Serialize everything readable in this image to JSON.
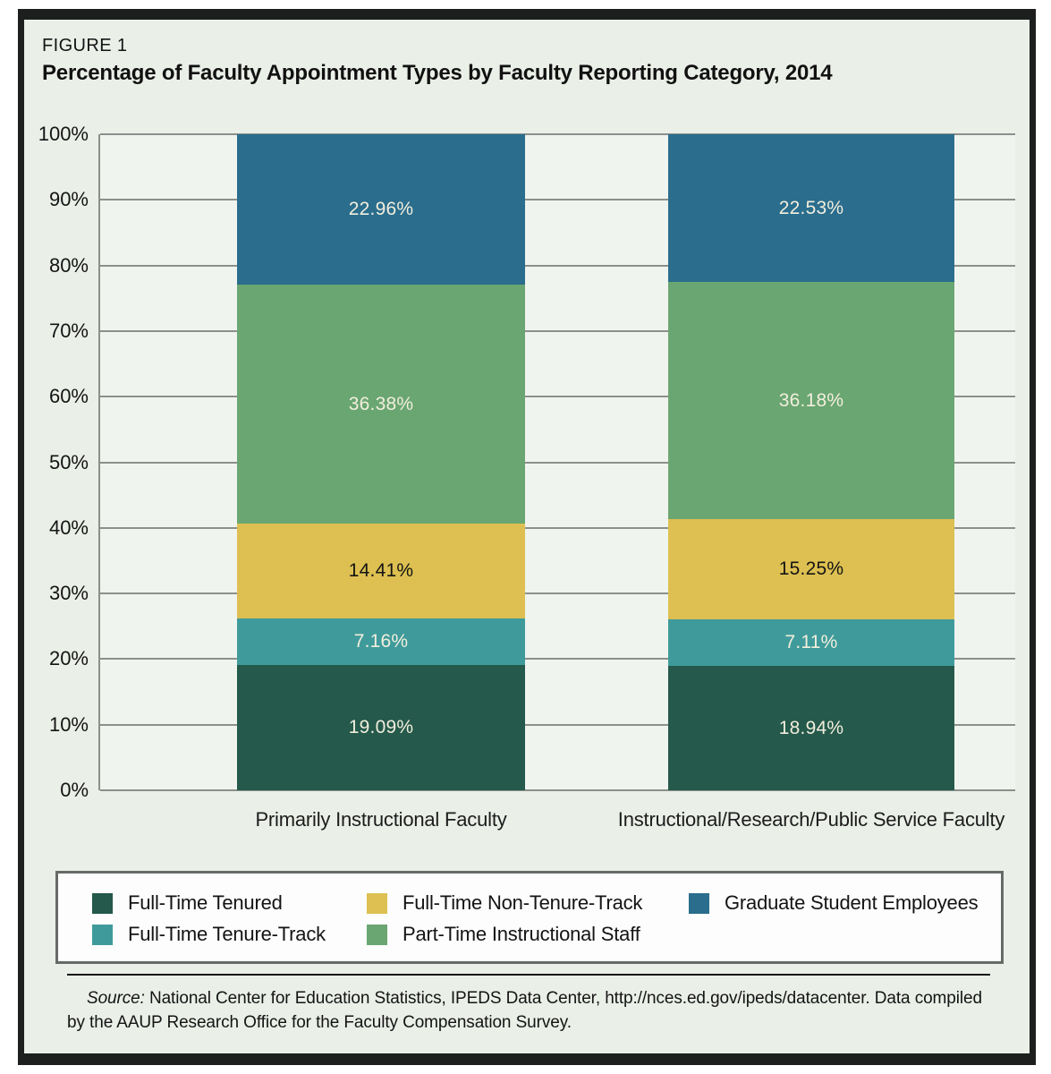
{
  "figure": {
    "label": "FIGURE 1",
    "title": "Percentage of Faculty Appointment Types by Faculty Reporting Category, 2014"
  },
  "chart_data": {
    "type": "bar",
    "stacked": true,
    "title": "Percentage of Faculty Appointment Types by Faculty Reporting Category, 2014",
    "categories": [
      "Primarily Instructional Faculty",
      "Instructional/Research/Public Service Faculty"
    ],
    "series": [
      {
        "name": "Full-Time Tenured",
        "color": "#24594b",
        "values": [
          19.09,
          18.94
        ],
        "label": "light"
      },
      {
        "name": "Full-Time Tenure-Track",
        "color": "#3f9b9b",
        "values": [
          7.16,
          7.11
        ],
        "label": "light"
      },
      {
        "name": "Full-Time Non-Tenure-Track",
        "color": "#ddc051",
        "values": [
          14.41,
          15.25
        ],
        "label": "dark"
      },
      {
        "name": "Part-Time Instructional Staff",
        "color": "#6aa672",
        "values": [
          36.38,
          36.18
        ],
        "label": "light"
      },
      {
        "name": "Graduate Student Employees",
        "color": "#2a6d8d",
        "values": [
          22.96,
          22.53
        ],
        "label": "light"
      }
    ],
    "y_ticks": [
      "100%",
      "90%",
      "80%",
      "70%",
      "60%",
      "50%",
      "40%",
      "30%",
      "20%",
      "10%",
      "0%"
    ],
    "ylim": [
      0,
      100
    ],
    "grid": "horizontal",
    "legend": {
      "position": "bottom-box",
      "rows": [
        [
          0,
          2,
          4
        ],
        [
          1,
          3
        ]
      ]
    }
  },
  "footer": {
    "source_label": "Source:",
    "source_text": " National Center for Education Statistics, IPEDS Data Center, http://nces.ed.gov/ipeds/datacenter. Data compiled by the AAUP Research Office for the Faculty Compensation Survey."
  }
}
